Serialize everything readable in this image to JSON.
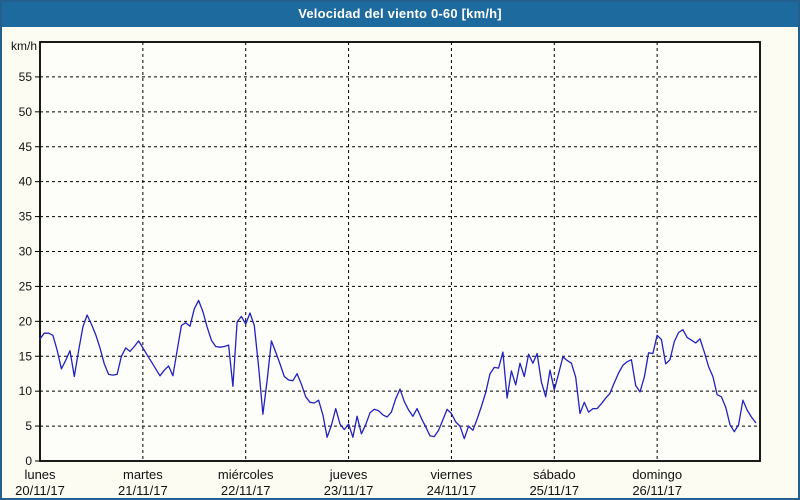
{
  "window": {
    "title": "Velocidad del viento 0-60 [km/h]"
  },
  "colors": {
    "titlebar_bg": "#1d6a9e",
    "titlebar_text": "#ffffff",
    "frame_border": "#23608f",
    "content_bg": "#fcfcf2",
    "plot_bg": "#fdfdfa",
    "axis": "#000000",
    "grid": "#000000",
    "line": "#2222c0",
    "label_text": "#111111"
  },
  "chart_data": {
    "type": "line",
    "title": "Velocidad del viento 0-60 [km/h]",
    "ylabel": "km/h",
    "ylim": [
      0,
      60
    ],
    "ytick_step": 5,
    "ytick_labels": [
      0,
      5,
      10,
      15,
      20,
      25,
      30,
      35,
      40,
      45,
      50,
      55
    ],
    "grid": true,
    "legend": false,
    "points_per_day": 24,
    "sampling": "hourly",
    "x_days": [
      {
        "name": "lunes",
        "date": "20/11/17"
      },
      {
        "name": "martes",
        "date": "21/11/17"
      },
      {
        "name": "miércoles",
        "date": "22/11/17"
      },
      {
        "name": "jueves",
        "date": "23/11/17"
      },
      {
        "name": "viernes",
        "date": "24/11/17"
      },
      {
        "name": "sábado",
        "date": "25/11/17"
      },
      {
        "name": "domingo",
        "date": "26/11/17"
      }
    ],
    "series": [
      {
        "name": "velocidad-del-viento",
        "unit": "km/h",
        "values": [
          17.5,
          18.3,
          18.3,
          18.0,
          15.9,
          13.2,
          14.4,
          15.8,
          12.1,
          15.8,
          19.2,
          20.9,
          19.6,
          18.1,
          16.2,
          13.9,
          12.4,
          12.3,
          12.4,
          15.0,
          16.2,
          15.7,
          16.4,
          17.2,
          16.2,
          15.2,
          14.2,
          13.2,
          12.2,
          13.0,
          13.6,
          12.2,
          15.8,
          19.4,
          19.8,
          19.3,
          21.8,
          23.0,
          21.4,
          19.2,
          17.3,
          16.4,
          16.3,
          16.4,
          16.6,
          10.7,
          19.9,
          20.7,
          19.6,
          21.2,
          19.4,
          13.5,
          6.7,
          11.5,
          17.2,
          15.6,
          13.9,
          12.1,
          11.6,
          11.5,
          12.5,
          11.0,
          9.2,
          8.4,
          8.3,
          8.7,
          6.6,
          3.4,
          5.1,
          7.5,
          5.3,
          4.5,
          5.3,
          3.4,
          6.4,
          3.9,
          5.2,
          6.9,
          7.4,
          7.2,
          6.6,
          6.3,
          7.0,
          8.9,
          10.3,
          8.5,
          7.3,
          6.4,
          7.5,
          6.1,
          4.9,
          3.6,
          3.5,
          4.4,
          5.9,
          7.4,
          6.8,
          5.6,
          5.0,
          3.2,
          5.0,
          4.4,
          6.0,
          7.8,
          9.8,
          12.5,
          13.4,
          13.3,
          15.6,
          9.0,
          12.9,
          10.9,
          14.0,
          12.1,
          15.3,
          14.0,
          15.4,
          11.3,
          9.2,
          13.0,
          10.2,
          12.5,
          14.9,
          14.4,
          14.0,
          12.0,
          6.8,
          8.4,
          7.0,
          7.5,
          7.5,
          8.2,
          9.0,
          9.7,
          11.2,
          12.6,
          13.7,
          14.2,
          14.5,
          10.8,
          9.9,
          12.0,
          15.5,
          15.4,
          18.0,
          17.4,
          13.9,
          14.5,
          17.1,
          18.4,
          18.8,
          17.7,
          17.3,
          16.9,
          17.5,
          15.6,
          13.5,
          12.1,
          9.5,
          9.2,
          7.7,
          5.2,
          4.2,
          5.2,
          8.7,
          7.3,
          6.3,
          5.5
        ]
      }
    ]
  }
}
